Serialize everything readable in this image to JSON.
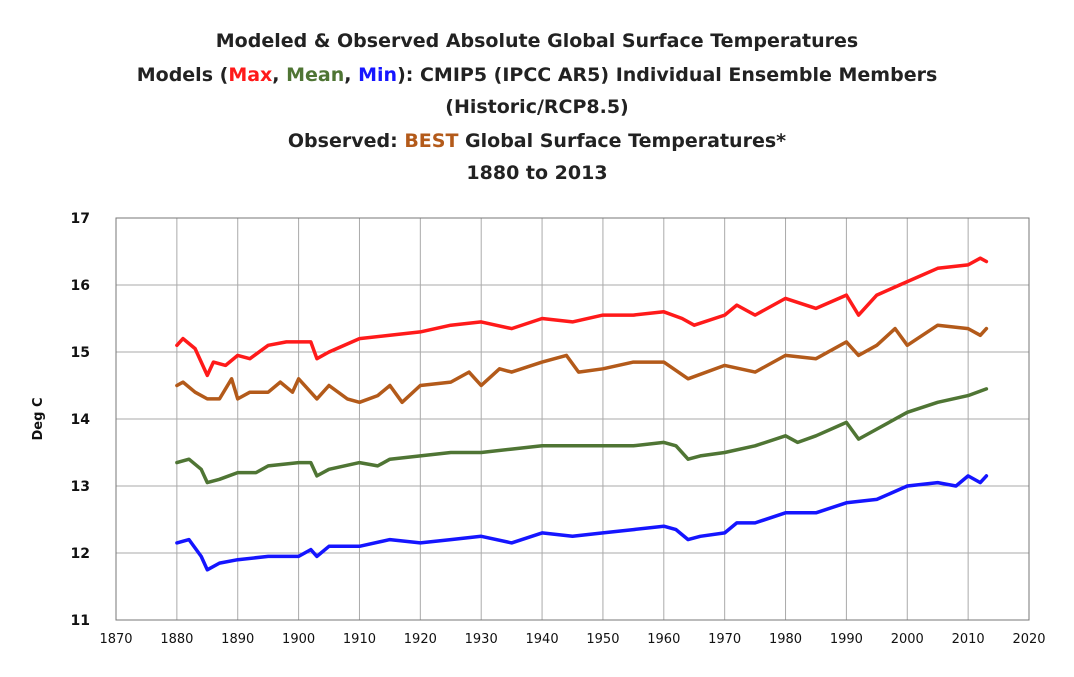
{
  "title": {
    "line1": "Modeled & Observed Absolute Global Surface Temperatures",
    "line2_prefix": "Models (",
    "line2_max": "Max",
    "line2_sep1": ", ",
    "line2_mean": "Mean",
    "line2_sep2": ", ",
    "line2_min": "Min",
    "line2_suffix": "): CMIP5 (IPCC AR5) Individual Ensemble Members",
    "line3": "(Historic/RCP8.5)",
    "line4_prefix": "Observed: ",
    "line4_best": "BEST",
    "line4_suffix": " Global Surface Temperatures*",
    "line5": "1880 to 2013"
  },
  "chart_data": {
    "type": "line",
    "ylabel": "Deg C",
    "xlim": [
      1870,
      2020
    ],
    "ylim": [
      11,
      17
    ],
    "xticks": [
      1870,
      1880,
      1890,
      1900,
      1910,
      1920,
      1930,
      1940,
      1950,
      1960,
      1970,
      1980,
      1990,
      2000,
      2010,
      2020
    ],
    "yticks": [
      11,
      12,
      13,
      14,
      15,
      16,
      17
    ],
    "grid": "both",
    "colors": {
      "max": "#ff1a1a",
      "best": "#b35a1a",
      "mean": "#4f7534",
      "min": "#1515ff",
      "grid": "#aaaaaa"
    },
    "series": [
      {
        "name": "Max",
        "color": "#ff1a1a",
        "anchors": [
          [
            1880,
            15.1
          ],
          [
            1881,
            15.2
          ],
          [
            1883,
            15.05
          ],
          [
            1885,
            14.65
          ],
          [
            1886,
            14.85
          ],
          [
            1888,
            14.8
          ],
          [
            1890,
            14.95
          ],
          [
            1892,
            14.9
          ],
          [
            1895,
            15.1
          ],
          [
            1898,
            15.15
          ],
          [
            1902,
            15.15
          ],
          [
            1903,
            14.9
          ],
          [
            1905,
            15.0
          ],
          [
            1910,
            15.2
          ],
          [
            1915,
            15.25
          ],
          [
            1920,
            15.3
          ],
          [
            1925,
            15.4
          ],
          [
            1930,
            15.45
          ],
          [
            1935,
            15.35
          ],
          [
            1940,
            15.5
          ],
          [
            1945,
            15.45
          ],
          [
            1950,
            15.55
          ],
          [
            1955,
            15.55
          ],
          [
            1960,
            15.6
          ],
          [
            1963,
            15.5
          ],
          [
            1965,
            15.4
          ],
          [
            1970,
            15.55
          ],
          [
            1972,
            15.7
          ],
          [
            1975,
            15.55
          ],
          [
            1980,
            15.8
          ],
          [
            1985,
            15.65
          ],
          [
            1990,
            15.85
          ],
          [
            1992,
            15.55
          ],
          [
            1995,
            15.85
          ],
          [
            2000,
            16.05
          ],
          [
            2005,
            16.25
          ],
          [
            2010,
            16.3
          ],
          [
            2012,
            16.4
          ],
          [
            2013,
            16.35
          ]
        ]
      },
      {
        "name": "BEST",
        "color": "#b35a1a",
        "anchors": [
          [
            1880,
            14.5
          ],
          [
            1881,
            14.55
          ],
          [
            1883,
            14.4
          ],
          [
            1885,
            14.3
          ],
          [
            1887,
            14.3
          ],
          [
            1889,
            14.6
          ],
          [
            1890,
            14.3
          ],
          [
            1892,
            14.4
          ],
          [
            1895,
            14.4
          ],
          [
            1897,
            14.55
          ],
          [
            1899,
            14.4
          ],
          [
            1900,
            14.6
          ],
          [
            1903,
            14.3
          ],
          [
            1905,
            14.5
          ],
          [
            1908,
            14.3
          ],
          [
            1910,
            14.25
          ],
          [
            1913,
            14.35
          ],
          [
            1915,
            14.5
          ],
          [
            1917,
            14.25
          ],
          [
            1920,
            14.5
          ],
          [
            1925,
            14.55
          ],
          [
            1928,
            14.7
          ],
          [
            1930,
            14.5
          ],
          [
            1933,
            14.75
          ],
          [
            1935,
            14.7
          ],
          [
            1940,
            14.85
          ],
          [
            1944,
            14.95
          ],
          [
            1946,
            14.7
          ],
          [
            1950,
            14.75
          ],
          [
            1955,
            14.85
          ],
          [
            1960,
            14.85
          ],
          [
            1964,
            14.6
          ],
          [
            1970,
            14.8
          ],
          [
            1975,
            14.7
          ],
          [
            1980,
            14.95
          ],
          [
            1985,
            14.9
          ],
          [
            1990,
            15.15
          ],
          [
            1992,
            14.95
          ],
          [
            1995,
            15.1
          ],
          [
            1998,
            15.35
          ],
          [
            2000,
            15.1
          ],
          [
            2005,
            15.4
          ],
          [
            2010,
            15.35
          ],
          [
            2012,
            15.25
          ],
          [
            2013,
            15.35
          ]
        ]
      },
      {
        "name": "Mean",
        "color": "#4f7534",
        "anchors": [
          [
            1880,
            13.35
          ],
          [
            1882,
            13.4
          ],
          [
            1884,
            13.25
          ],
          [
            1885,
            13.05
          ],
          [
            1887,
            13.1
          ],
          [
            1890,
            13.2
          ],
          [
            1893,
            13.2
          ],
          [
            1895,
            13.3
          ],
          [
            1900,
            13.35
          ],
          [
            1902,
            13.35
          ],
          [
            1903,
            13.15
          ],
          [
            1905,
            13.25
          ],
          [
            1910,
            13.35
          ],
          [
            1913,
            13.3
          ],
          [
            1915,
            13.4
          ],
          [
            1920,
            13.45
          ],
          [
            1925,
            13.5
          ],
          [
            1930,
            13.5
          ],
          [
            1935,
            13.55
          ],
          [
            1940,
            13.6
          ],
          [
            1945,
            13.6
          ],
          [
            1950,
            13.6
          ],
          [
            1955,
            13.6
          ],
          [
            1960,
            13.65
          ],
          [
            1962,
            13.6
          ],
          [
            1964,
            13.4
          ],
          [
            1966,
            13.45
          ],
          [
            1970,
            13.5
          ],
          [
            1975,
            13.6
          ],
          [
            1980,
            13.75
          ],
          [
            1982,
            13.65
          ],
          [
            1985,
            13.75
          ],
          [
            1990,
            13.95
          ],
          [
            1992,
            13.7
          ],
          [
            1995,
            13.85
          ],
          [
            2000,
            14.1
          ],
          [
            2005,
            14.25
          ],
          [
            2010,
            14.35
          ],
          [
            2013,
            14.45
          ]
        ]
      },
      {
        "name": "Min",
        "color": "#1515ff",
        "anchors": [
          [
            1880,
            12.15
          ],
          [
            1882,
            12.2
          ],
          [
            1884,
            11.95
          ],
          [
            1885,
            11.75
          ],
          [
            1887,
            11.85
          ],
          [
            1890,
            11.9
          ],
          [
            1895,
            11.95
          ],
          [
            1900,
            11.95
          ],
          [
            1902,
            12.05
          ],
          [
            1903,
            11.95
          ],
          [
            1905,
            12.1
          ],
          [
            1910,
            12.1
          ],
          [
            1915,
            12.2
          ],
          [
            1920,
            12.15
          ],
          [
            1925,
            12.2
          ],
          [
            1930,
            12.25
          ],
          [
            1935,
            12.15
          ],
          [
            1940,
            12.3
          ],
          [
            1945,
            12.25
          ],
          [
            1950,
            12.3
          ],
          [
            1955,
            12.35
          ],
          [
            1960,
            12.4
          ],
          [
            1962,
            12.35
          ],
          [
            1964,
            12.2
          ],
          [
            1966,
            12.25
          ],
          [
            1970,
            12.3
          ],
          [
            1972,
            12.45
          ],
          [
            1975,
            12.45
          ],
          [
            1980,
            12.6
          ],
          [
            1985,
            12.6
          ],
          [
            1990,
            12.75
          ],
          [
            1995,
            12.8
          ],
          [
            2000,
            13.0
          ],
          [
            2005,
            13.05
          ],
          [
            2008,
            13.0
          ],
          [
            2010,
            13.15
          ],
          [
            2012,
            13.05
          ],
          [
            2013,
            13.15
          ]
        ]
      }
    ]
  }
}
